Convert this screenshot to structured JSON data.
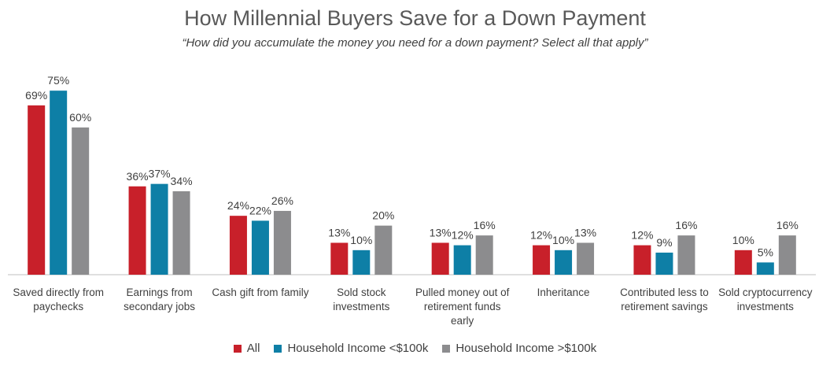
{
  "chart_data": {
    "type": "bar",
    "title": "How Millennial Buyers Save for a Down Payment",
    "subtitle": "“How did you accumulate the money you need for a down payment? Select all that apply”",
    "categories": [
      [
        "Saved directly from",
        "paychecks"
      ],
      [
        "Earnings from",
        "secondary jobs"
      ],
      [
        "Cash gift from family"
      ],
      [
        "Sold stock",
        "investments"
      ],
      [
        "Pulled money out of",
        "retirement funds",
        "early"
      ],
      [
        "Inheritance"
      ],
      [
        "Contributed less to",
        "retirement savings"
      ],
      [
        "Sold cryptocurrency",
        "investments"
      ]
    ],
    "series": [
      {
        "name": "All",
        "color": "#C8202A",
        "values": [
          69,
          36,
          24,
          13,
          13,
          12,
          12,
          10
        ]
      },
      {
        "name": "Household Income <$100k",
        "color": "#0E7FA6",
        "values": [
          75,
          37,
          22,
          10,
          12,
          10,
          9,
          5
        ]
      },
      {
        "name": "Household Income >$100k",
        "color": "#8C8C8E",
        "values": [
          60,
          34,
          26,
          20,
          16,
          13,
          16,
          16
        ]
      }
    ],
    "value_suffix": "%",
    "xlabel": "",
    "ylabel": "",
    "ylim": [
      0,
      85
    ],
    "grid": false,
    "legend": "bottom"
  },
  "legend": {
    "all": "All",
    "under": "Household Income <$100k",
    "over": "Household Income >$100k"
  }
}
